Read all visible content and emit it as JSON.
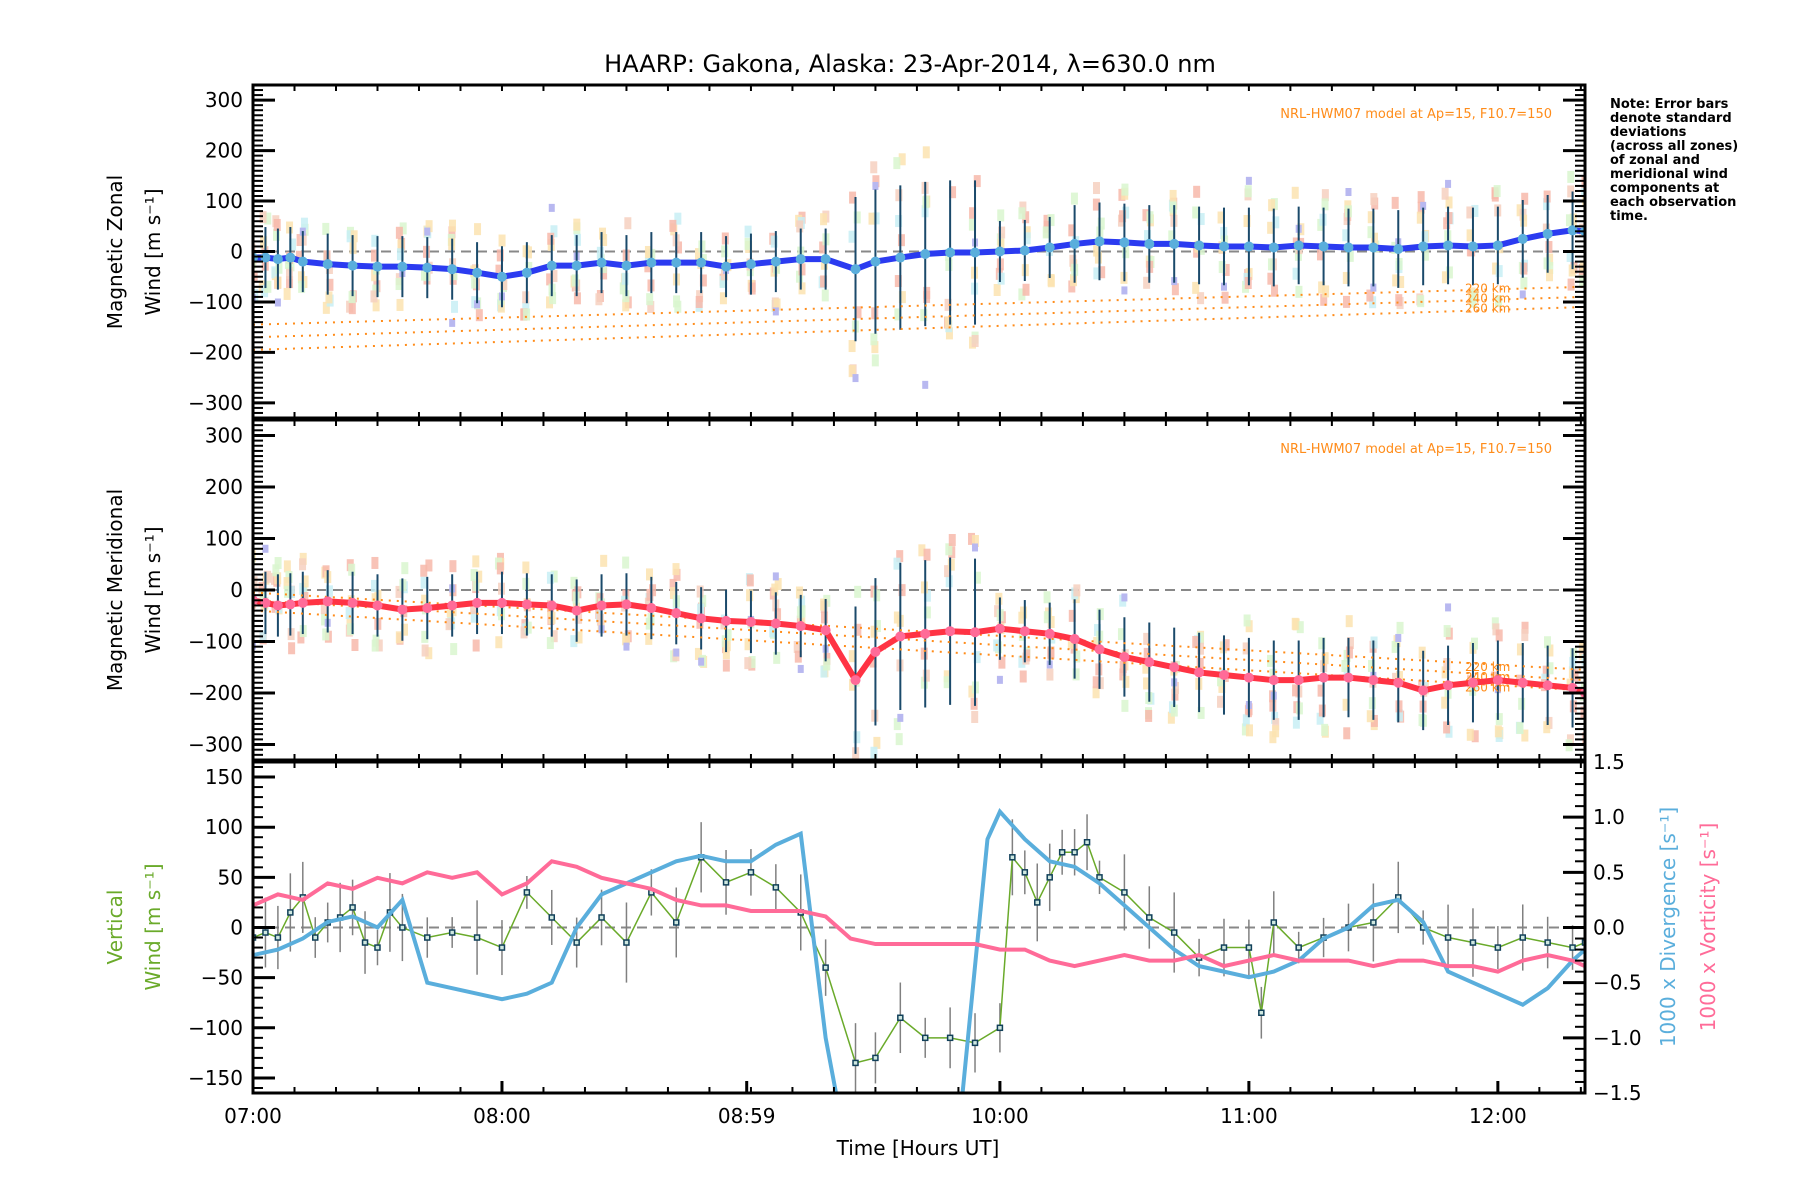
{
  "chart_data": [
    {
      "type": "line",
      "panel": "zonal",
      "title": "HAARP: Gakona,  Alaska: 23-Apr-2014, λ=630.0 nm",
      "ylabel_line1": "Magnetic Zonal",
      "ylabel_line2": "Wind [m s⁻¹]",
      "ylim": [
        -330,
        330
      ],
      "yticks": [
        300,
        200,
        100,
        0,
        -100,
        -200,
        -300
      ],
      "model_annotation": "NRL-HWM07 model at Ap=15, F10.7=150",
      "model_lines": [
        {
          "name": "220 km",
          "x": [
            7.0,
            12.35
          ],
          "y": [
            -145,
            -70
          ]
        },
        {
          "name": "240 km",
          "x": [
            7.0,
            12.35
          ],
          "y": [
            -170,
            -90
          ]
        },
        {
          "name": "260 km",
          "x": [
            7.0,
            12.35
          ],
          "y": [
            -195,
            -110
          ]
        }
      ],
      "series": [
        {
          "name": "Zonal wind mean",
          "color": "#2b3bf0",
          "x": [
            7.0,
            7.05,
            7.1,
            7.15,
            7.2,
            7.3,
            7.4,
            7.5,
            7.6,
            7.7,
            7.8,
            7.9,
            8.0,
            8.1,
            8.2,
            8.3,
            8.4,
            8.5,
            8.6,
            8.7,
            8.8,
            8.9,
            9.0,
            9.1,
            9.2,
            9.3,
            9.42,
            9.5,
            9.6,
            9.7,
            9.8,
            9.9,
            10.0,
            10.1,
            10.2,
            10.3,
            10.4,
            10.5,
            10.6,
            10.7,
            10.8,
            10.9,
            11.0,
            11.1,
            11.2,
            11.3,
            11.4,
            11.5,
            11.6,
            11.7,
            11.8,
            11.9,
            12.0,
            12.1,
            12.2,
            12.3,
            12.35
          ],
          "y": [
            -12,
            -12,
            -15,
            -12,
            -20,
            -25,
            -28,
            -30,
            -30,
            -32,
            -35,
            -42,
            -50,
            -42,
            -28,
            -28,
            -22,
            -28,
            -22,
            -22,
            -22,
            -30,
            -25,
            -20,
            -15,
            -15,
            -35,
            -20,
            -12,
            -5,
            -2,
            -2,
            0,
            2,
            8,
            15,
            20,
            18,
            15,
            15,
            12,
            10,
            10,
            8,
            12,
            10,
            8,
            8,
            5,
            10,
            12,
            10,
            12,
            25,
            35,
            42,
            40
          ]
        }
      ]
    },
    {
      "type": "line",
      "panel": "meridional",
      "ylabel_line1": "Magnetic Meridional",
      "ylabel_line2": "Wind [m s⁻¹]",
      "ylim": [
        -330,
        330
      ],
      "yticks": [
        300,
        200,
        100,
        0,
        -100,
        -200,
        -300
      ],
      "model_annotation": "NRL-HWM07 model at Ap=15, F10.7=150",
      "model_lines": [
        {
          "name": "220 km",
          "x": [
            7.0,
            12.35
          ],
          "y": [
            -5,
            -155
          ]
        },
        {
          "name": "240 km",
          "x": [
            7.0,
            12.35
          ],
          "y": [
            -20,
            -175
          ]
        },
        {
          "name": "260 km",
          "x": [
            7.0,
            12.35
          ],
          "y": [
            -40,
            -195
          ]
        }
      ],
      "series": [
        {
          "name": "Meridional wind mean",
          "color": "#ff3344",
          "x": [
            7.0,
            7.05,
            7.1,
            7.15,
            7.2,
            7.3,
            7.4,
            7.5,
            7.6,
            7.7,
            7.8,
            7.9,
            8.0,
            8.1,
            8.2,
            8.3,
            8.4,
            8.5,
            8.6,
            8.7,
            8.8,
            8.9,
            9.0,
            9.1,
            9.2,
            9.3,
            9.42,
            9.5,
            9.6,
            9.7,
            9.8,
            9.9,
            10.0,
            10.1,
            10.2,
            10.3,
            10.4,
            10.5,
            10.6,
            10.7,
            10.8,
            10.9,
            11.0,
            11.1,
            11.2,
            11.3,
            11.4,
            11.5,
            11.6,
            11.7,
            11.8,
            11.9,
            12.0,
            12.1,
            12.2,
            12.3,
            12.35
          ],
          "y": [
            -20,
            -25,
            -30,
            -28,
            -25,
            -22,
            -25,
            -30,
            -38,
            -35,
            -30,
            -25,
            -25,
            -28,
            -30,
            -40,
            -30,
            -28,
            -35,
            -45,
            -55,
            -60,
            -62,
            -65,
            -70,
            -78,
            -175,
            -120,
            -90,
            -85,
            -80,
            -82,
            -75,
            -80,
            -85,
            -95,
            -115,
            -130,
            -140,
            -150,
            -160,
            -165,
            -170,
            -175,
            -175,
            -170,
            -170,
            -175,
            -180,
            -195,
            -185,
            -180,
            -175,
            -180,
            -185,
            -190,
            -200
          ]
        }
      ]
    },
    {
      "type": "line",
      "panel": "vertical",
      "ylabel_line1": "Vertical",
      "ylabel_line2": "Wind [m s⁻¹]",
      "ylim": [
        -165,
        165
      ],
      "yticks": [
        150,
        100,
        50,
        0,
        -50,
        -100,
        -150
      ],
      "y2label_div": "1000 x Divergence [s⁻¹]",
      "y2label_vort": "1000 x Vorticity [s⁻¹]",
      "y2lim": [
        -1.5,
        1.5
      ],
      "y2ticks": [
        "1.5",
        "1.0",
        "0.5",
        "0.0",
        "-0.5",
        "-1.0",
        "-1.5"
      ],
      "xlabel": "Time [Hours UT]",
      "xticks": [
        {
          "value": 7.0,
          "label": "07:00"
        },
        {
          "value": 8.0,
          "label": "08:00"
        },
        {
          "value": 8.983,
          "label": "08:59"
        },
        {
          "value": 10.0,
          "label": "10:00"
        },
        {
          "value": 11.0,
          "label": "11:00"
        },
        {
          "value": 12.0,
          "label": "12:00"
        }
      ],
      "xlim": [
        7.0,
        12.35
      ],
      "series": [
        {
          "name": "Vertical wind",
          "color": "#6aaa2a",
          "axis": "left",
          "x": [
            7.0,
            7.05,
            7.1,
            7.15,
            7.2,
            7.25,
            7.3,
            7.35,
            7.4,
            7.45,
            7.5,
            7.55,
            7.6,
            7.7,
            7.8,
            7.9,
            8.0,
            8.1,
            8.2,
            8.3,
            8.4,
            8.5,
            8.6,
            8.7,
            8.8,
            8.9,
            9.0,
            9.1,
            9.2,
            9.3,
            9.42,
            9.5,
            9.6,
            9.7,
            9.8,
            9.9,
            10.0,
            10.05,
            10.1,
            10.15,
            10.2,
            10.25,
            10.3,
            10.35,
            10.4,
            10.5,
            10.6,
            10.7,
            10.8,
            10.9,
            11.0,
            11.05,
            11.1,
            11.2,
            11.3,
            11.4,
            11.5,
            11.6,
            11.7,
            11.8,
            11.9,
            12.0,
            12.1,
            12.2,
            12.3,
            12.35
          ],
          "y": [
            -10,
            -5,
            -10,
            15,
            30,
            -10,
            5,
            10,
            20,
            -15,
            -20,
            15,
            0,
            -10,
            -5,
            -10,
            -20,
            35,
            10,
            -15,
            10,
            -15,
            35,
            5,
            70,
            45,
            55,
            40,
            15,
            -40,
            -135,
            -130,
            -90,
            -110,
            -110,
            -115,
            -100,
            70,
            55,
            25,
            50,
            75,
            75,
            85,
            50,
            35,
            10,
            -5,
            -30,
            -20,
            -20,
            -85,
            5,
            -20,
            -10,
            0,
            5,
            30,
            0,
            -10,
            -15,
            -20,
            -10,
            -15,
            -20,
            -15
          ]
        },
        {
          "name": "1000 x Divergence",
          "color": "#5aaedc",
          "axis": "right",
          "x": [
            7.0,
            7.1,
            7.2,
            7.3,
            7.4,
            7.5,
            7.6,
            7.7,
            7.8,
            7.9,
            8.0,
            8.1,
            8.2,
            8.3,
            8.4,
            8.5,
            8.6,
            8.7,
            8.8,
            8.9,
            9.0,
            9.1,
            9.2,
            9.3,
            9.35,
            9.45,
            9.6,
            9.75,
            9.85,
            9.95,
            10.0,
            10.1,
            10.2,
            10.3,
            10.4,
            10.5,
            10.6,
            10.7,
            10.8,
            10.9,
            11.0,
            11.1,
            11.2,
            11.3,
            11.4,
            11.5,
            11.6,
            11.7,
            11.8,
            11.9,
            12.0,
            12.1,
            12.2,
            12.3,
            12.35
          ],
          "y": [
            -0.25,
            -0.2,
            -0.1,
            0.05,
            0.1,
            0.0,
            0.25,
            -0.5,
            -0.55,
            -0.6,
            -0.65,
            -0.6,
            -0.5,
            0.0,
            0.3,
            0.4,
            0.5,
            0.6,
            0.65,
            0.6,
            0.6,
            0.75,
            0.85,
            -1.0,
            -1.6,
            -1.6,
            -1.6,
            -1.6,
            -1.5,
            0.8,
            1.05,
            0.8,
            0.6,
            0.55,
            0.4,
            0.2,
            0.0,
            -0.2,
            -0.35,
            -0.4,
            -0.45,
            -0.4,
            -0.3,
            -0.1,
            0.0,
            0.2,
            0.25,
            0.05,
            -0.4,
            -0.5,
            -0.6,
            -0.7,
            -0.55,
            -0.3,
            -0.2
          ]
        },
        {
          "name": "1000 x Vorticity",
          "color": "#ff6b98",
          "axis": "right",
          "x": [
            7.0,
            7.1,
            7.2,
            7.3,
            7.4,
            7.5,
            7.6,
            7.7,
            7.8,
            7.9,
            8.0,
            8.1,
            8.2,
            8.3,
            8.4,
            8.5,
            8.6,
            8.7,
            8.8,
            8.9,
            9.0,
            9.1,
            9.2,
            9.3,
            9.4,
            9.5,
            9.6,
            9.7,
            9.8,
            9.9,
            10.0,
            10.1,
            10.2,
            10.3,
            10.4,
            10.5,
            10.6,
            10.7,
            10.8,
            10.9,
            11.0,
            11.1,
            11.2,
            11.3,
            11.4,
            11.5,
            11.6,
            11.7,
            11.8,
            11.9,
            12.0,
            12.1,
            12.2,
            12.3,
            12.35
          ],
          "y": [
            0.2,
            0.3,
            0.25,
            0.4,
            0.35,
            0.45,
            0.4,
            0.5,
            0.45,
            0.5,
            0.3,
            0.4,
            0.6,
            0.55,
            0.45,
            0.4,
            0.35,
            0.25,
            0.2,
            0.2,
            0.15,
            0.15,
            0.15,
            0.1,
            -0.1,
            -0.15,
            -0.15,
            -0.15,
            -0.15,
            -0.15,
            -0.2,
            -0.2,
            -0.3,
            -0.35,
            -0.3,
            -0.25,
            -0.3,
            -0.3,
            -0.25,
            -0.35,
            -0.3,
            -0.25,
            -0.3,
            -0.3,
            -0.3,
            -0.35,
            -0.3,
            -0.3,
            -0.35,
            -0.35,
            -0.4,
            -0.3,
            -0.25,
            -0.3,
            -0.35
          ]
        }
      ]
    }
  ],
  "note": [
    "Note: Error bars",
    "denote standard",
    "deviations",
    "(across all zones)",
    "of zonal and",
    "meridional wind",
    "components at",
    "each observation",
    "time."
  ]
}
